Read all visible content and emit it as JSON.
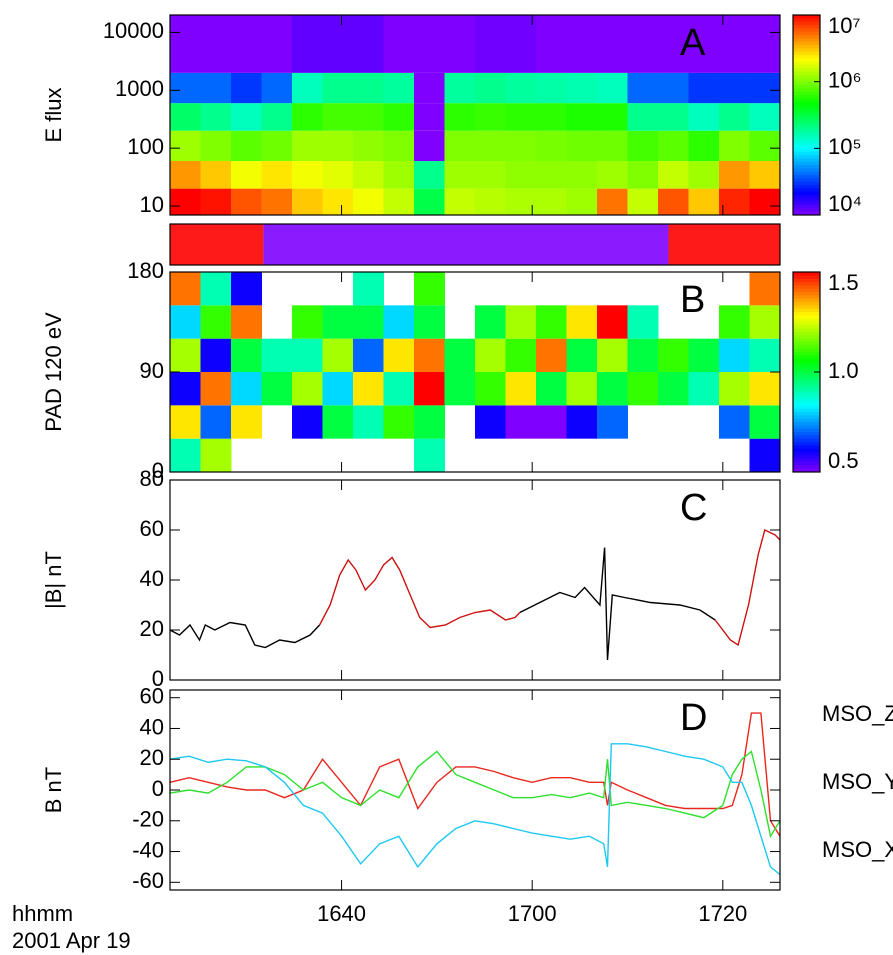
{
  "x_axis": {
    "xlim": [
      22,
      86
    ],
    "xticks": [
      {
        "value": 40,
        "label": "1640"
      },
      {
        "value": 60,
        "label": "1700"
      },
      {
        "value": 80,
        "label": "1720"
      }
    ],
    "label": "hhmm",
    "date": "2001 Apr 19"
  },
  "chart_data": [
    {
      "type": "heatmap",
      "panel_label": "A",
      "ylabel": "E flux",
      "log_y": true,
      "ylim": [
        7,
        20000
      ],
      "yticks": [
        10,
        100,
        1000,
        10000
      ],
      "x_bins": [
        22,
        25.2,
        28.4,
        31.6,
        34.8,
        38,
        41.2,
        44.4,
        47.6,
        50.8,
        54,
        57.2,
        60.4,
        63.6,
        66.8,
        70,
        73.2,
        76.4,
        79.6,
        82.8,
        86
      ],
      "y_bins": [
        7,
        20,
        60,
        200,
        600,
        2000,
        20000
      ],
      "values": [
        [
          10000000,
          4000000,
          1200000,
          250000,
          40000,
          10000
        ],
        [
          9000000,
          3000000,
          1000000,
          200000,
          40000,
          10000
        ],
        [
          6000000,
          2000000,
          800000,
          150000,
          30000,
          10000
        ],
        [
          5000000,
          2500000,
          900000,
          200000,
          40000,
          10000
        ],
        [
          3000000,
          2000000,
          1200000,
          600000,
          150000,
          12000
        ],
        [
          2500000,
          1800000,
          1200000,
          700000,
          200000,
          12000
        ],
        [
          2000000,
          1500000,
          1100000,
          700000,
          200000,
          12000
        ],
        [
          1500000,
          1200000,
          1000000,
          600000,
          180000,
          10000
        ],
        [
          300000,
          200000,
          10000,
          10000,
          10000,
          10000
        ],
        [
          1500000,
          1200000,
          1000000,
          600000,
          180000,
          10000
        ],
        [
          1400000,
          1200000,
          1000000,
          650000,
          200000,
          11000
        ],
        [
          1300000,
          1100000,
          1000000,
          600000,
          180000,
          11000
        ],
        [
          1300000,
          1100000,
          950000,
          600000,
          170000,
          10000
        ],
        [
          1200000,
          1100000,
          900000,
          550000,
          160000,
          10000
        ],
        [
          5000000,
          1200000,
          900000,
          550000,
          150000,
          10000
        ],
        [
          1500000,
          1000000,
          700000,
          200000,
          40000,
          10000
        ],
        [
          6000000,
          1500000,
          800000,
          200000,
          40000,
          10000
        ],
        [
          3000000,
          1200000,
          600000,
          150000,
          30000,
          10000
        ],
        [
          8000000,
          4000000,
          1000000,
          200000,
          30000,
          10000
        ],
        [
          10000000,
          3000000,
          800000,
          150000,
          30000,
          10000
        ]
      ],
      "colorbar": {
        "lim": [
          10000,
          10000000
        ],
        "log": true,
        "ticks": [
          {
            "value": 10000,
            "label": "10⁴"
          },
          {
            "value": 100000,
            "label": "10⁵"
          },
          {
            "value": 1000000,
            "label": "10⁶"
          },
          {
            "value": 10000000,
            "label": "10⁷"
          }
        ]
      }
    },
    {
      "type": "bands",
      "regions": [
        {
          "start": 22,
          "end": 31.8,
          "color": "#ff1a1a"
        },
        {
          "start": 31.8,
          "end": 74.3,
          "color": "#8c1aff"
        },
        {
          "start": 74.3,
          "end": 86,
          "color": "#ff1a1a"
        }
      ]
    },
    {
      "type": "heatmap",
      "panel_label": "B",
      "ylabel": "PAD 120 eV",
      "log_y": false,
      "ylim": [
        0,
        180
      ],
      "yticks": [
        0,
        90,
        180
      ],
      "x_bins": [
        22,
        25.2,
        28.4,
        31.6,
        34.8,
        38,
        41.2,
        44.4,
        47.6,
        50.8,
        54,
        57.2,
        60.4,
        63.6,
        66.8,
        70,
        73.2,
        76.4,
        79.6,
        82.8,
        86
      ],
      "y_bins": [
        0,
        30,
        60,
        90,
        120,
        150,
        180
      ],
      "values": [
        [
          0.9,
          1.3,
          0.6,
          1.2,
          0.8,
          1.4
        ],
        [
          1.2,
          0.7,
          1.4,
          0.6,
          1.1,
          0.9
        ],
        [
          null,
          1.3,
          0.8,
          1.0,
          1.4,
          0.6
        ],
        [
          null,
          null,
          1.0,
          0.9,
          null,
          null
        ],
        [
          null,
          0.6,
          1.2,
          0.9,
          1.1,
          null
        ],
        [
          null,
          1.0,
          0.8,
          1.2,
          1.0,
          null
        ],
        [
          null,
          0.9,
          1.3,
          0.7,
          1.0,
          0.9
        ],
        [
          null,
          1.1,
          0.9,
          1.3,
          0.8,
          null
        ],
        [
          0.9,
          1.0,
          1.5,
          1.4,
          1.0,
          1.1
        ],
        [
          null,
          null,
          1.0,
          1.0,
          null,
          null
        ],
        [
          null,
          0.6,
          1.1,
          1.2,
          1.0,
          null
        ],
        [
          null,
          0.5,
          1.3,
          1.1,
          1.2,
          null
        ],
        [
          null,
          0.5,
          1.0,
          1.4,
          1.1,
          null
        ],
        [
          null,
          0.6,
          1.2,
          1.0,
          1.3,
          null
        ],
        [
          null,
          0.7,
          1.0,
          1.2,
          1.5,
          null
        ],
        [
          null,
          null,
          1.1,
          1.0,
          0.9,
          null
        ],
        [
          null,
          null,
          1.0,
          1.1,
          null,
          null
        ],
        [
          null,
          null,
          0.9,
          1.0,
          null,
          null
        ],
        [
          null,
          0.7,
          1.2,
          0.8,
          1.1,
          null
        ],
        [
          0.6,
          1.0,
          1.3,
          0.9,
          1.2,
          1.4
        ]
      ],
      "colorbar": {
        "lim": [
          0.5,
          1.5
        ],
        "log": false,
        "ticks": [
          {
            "value": 0.5,
            "label": "0.5"
          },
          {
            "value": 1.0,
            "label": "1.0"
          },
          {
            "value": 1.5,
            "label": "1.5"
          }
        ]
      }
    },
    {
      "type": "line",
      "panel_label": "C",
      "ylabel": "|B| nT",
      "ylim": [
        0,
        80
      ],
      "yticks": [
        0,
        20,
        40,
        60,
        80
      ],
      "series": [
        {
          "color": "#000000",
          "x": [
            22,
            23,
            24.1,
            25.1,
            25.7,
            26.7,
            28.3,
            29.9,
            30.9,
            32,
            33.5,
            35.1,
            36.7,
            37.7
          ],
          "values": [
            20,
            18,
            22,
            16,
            22,
            20,
            23,
            22,
            14,
            13,
            16,
            15,
            18,
            22
          ]
        },
        {
          "color": "#cc1111",
          "x": [
            37.7,
            38.8,
            39.8,
            40.7,
            41.5,
            42.5,
            43.5,
            44.4,
            45.3,
            46.1,
            47.2,
            48.2,
            49.3,
            50.9,
            52.4,
            54,
            55.6,
            57.2,
            58.2,
            58.7
          ],
          "values": [
            22,
            30,
            42,
            48,
            44,
            36,
            40,
            46,
            49,
            44,
            34,
            25,
            21,
            22,
            25,
            27,
            28,
            24,
            25,
            27
          ]
        },
        {
          "color": "#000000",
          "x": [
            58.7,
            60.8,
            62.9,
            64.5,
            65.5,
            67.1,
            67.6,
            67.9,
            68.4,
            69.7,
            72.4,
            75.5,
            77.6,
            79.2
          ],
          "values": [
            27,
            31,
            35,
            33,
            37,
            30,
            53,
            8,
            34,
            33,
            31,
            30,
            28,
            24
          ]
        },
        {
          "color": "#cc1111",
          "x": [
            79.2,
            80.8,
            81.6,
            82.7,
            83.7,
            84.4,
            85.5,
            86
          ],
          "values": [
            24,
            16,
            14,
            30,
            50,
            60,
            58,
            56
          ]
        }
      ]
    },
    {
      "type": "line",
      "panel_label": "D",
      "ylabel": "B nT",
      "ylim": [
        -65,
        65
      ],
      "yticks": [
        -60,
        -40,
        -20,
        0,
        20,
        40,
        60
      ],
      "x": [
        22,
        24,
        26,
        28,
        30,
        32,
        34,
        36,
        38,
        40,
        42,
        44,
        46,
        48,
        50,
        52,
        54,
        56,
        58,
        60,
        62,
        64,
        66,
        67.5,
        67.9,
        68.3,
        70,
        72,
        74,
        76,
        78,
        80,
        81,
        82,
        83,
        84,
        85,
        86
      ],
      "series": [
        {
          "name": "MSO_Z",
          "color": "#e8281e",
          "values": [
            5,
            8,
            5,
            2,
            0,
            0,
            -5,
            0,
            20,
            5,
            -10,
            15,
            20,
            -12,
            5,
            15,
            15,
            12,
            8,
            5,
            8,
            8,
            5,
            5,
            -10,
            5,
            0,
            -5,
            -10,
            -12,
            -12,
            -12,
            -10,
            10,
            50,
            50,
            -20,
            -30
          ]
        },
        {
          "name": "MSO_Y",
          "color": "#2ee02e",
          "values": [
            -2,
            0,
            -2,
            5,
            15,
            15,
            10,
            0,
            5,
            -5,
            -10,
            0,
            -5,
            15,
            25,
            10,
            5,
            0,
            -5,
            -5,
            -3,
            -5,
            -2,
            -5,
            20,
            -10,
            -8,
            -10,
            -12,
            -15,
            -18,
            -10,
            10,
            20,
            25,
            0,
            -30,
            -20
          ]
        },
        {
          "name": "MSO_X",
          "color": "#1ec8f0",
          "values": [
            20,
            22,
            18,
            20,
            19,
            15,
            5,
            -10,
            -15,
            -30,
            -48,
            -35,
            -30,
            -50,
            -35,
            -25,
            -20,
            -22,
            -25,
            -28,
            -30,
            -32,
            -30,
            -35,
            -50,
            30,
            30,
            28,
            25,
            22,
            20,
            15,
            5,
            5,
            -10,
            -30,
            -50,
            -55
          ]
        }
      ]
    }
  ]
}
